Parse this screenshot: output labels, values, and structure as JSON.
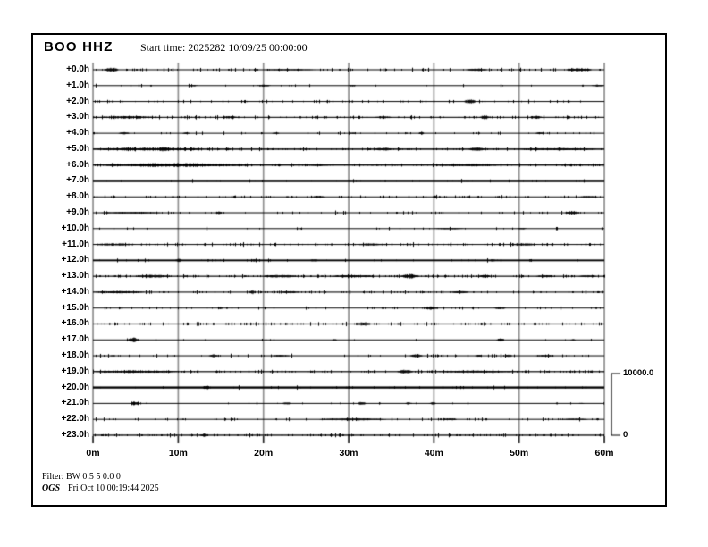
{
  "header": {
    "station": "BOO HHZ",
    "start_time_label": "Start time: 2025282 10/09/25 00:00:00"
  },
  "scale_bar": {
    "max": "10000.0",
    "min": "0"
  },
  "footer": {
    "filter": "Filter: BW 0.5 5 0.0 0",
    "agency": "OGS",
    "generated": "Fri Oct 10 00:19:44 2025"
  },
  "colors": {
    "background": "#ffffff",
    "frame": "#000000",
    "grid": "#909090",
    "grid_tick": "#222222",
    "trace": "#000000"
  },
  "chart_data": {
    "type": "line",
    "subtype": "helicorder",
    "title": "BOO HHZ",
    "x_label_unit": "minutes",
    "x_ticks": [
      "0m",
      "10m",
      "20m",
      "30m",
      "40m",
      "50m",
      "60m"
    ],
    "x_tick_minutes": [
      0,
      10,
      20,
      30,
      40,
      50,
      60
    ],
    "x_range_minutes": [
      0,
      60
    ],
    "row_offset_unit": "hours",
    "amplitude_scale": {
      "max": 10000.0,
      "min": 0
    },
    "legend_position": "right-bracket",
    "grid": "vertical-only",
    "rows": [
      {
        "label": "+0.0h",
        "hour": 0,
        "noise": 0.45,
        "thickness": 1,
        "events": [
          [
            1.3,
            1.6,
            2.4
          ],
          [
            20,
            6,
            0.7
          ],
          [
            43.8,
            2.4,
            1.4
          ],
          [
            55.5,
            3,
            1.8
          ]
        ]
      },
      {
        "label": "+1.0h",
        "hour": 1,
        "noise": 0.12,
        "thickness": 1,
        "events": [
          [
            11.2,
            1,
            1
          ],
          [
            19.2,
            1.6,
            1
          ],
          [
            30,
            0.8,
            0.9
          ],
          [
            58.5,
            1.4,
            1.1
          ]
        ]
      },
      {
        "label": "+2.0h",
        "hour": 2,
        "noise": 0.28,
        "thickness": 1,
        "events": [
          [
            43.5,
            1.4,
            2.4
          ]
        ]
      },
      {
        "label": "+3.0h",
        "hour": 3,
        "noise": 0.5,
        "thickness": 1.1,
        "events": [
          [
            0,
            8,
            1.4
          ],
          [
            15,
            2,
            1.3
          ],
          [
            33,
            2,
            1.3
          ],
          [
            45.3,
            1.2,
            2.2
          ],
          [
            51.2,
            1.6,
            1.6
          ]
        ]
      },
      {
        "label": "+4.0h",
        "hour": 4,
        "noise": 0.25,
        "thickness": 1,
        "events": [
          [
            3,
            1.2,
            1.3
          ],
          [
            10.5,
            0.8,
            1
          ],
          [
            21,
            0.8,
            0.9
          ],
          [
            30,
            0.8,
            0.9
          ],
          [
            38.2,
            0.6,
            1.8
          ],
          [
            51.9,
            1,
            1.1
          ]
        ]
      },
      {
        "label": "+5.0h",
        "hour": 5,
        "noise": 0.6,
        "thickness": 1.5,
        "events": [
          [
            0,
            13,
            1.7
          ],
          [
            7.5,
            1.6,
            2.4
          ],
          [
            33,
            2,
            1.7
          ],
          [
            44,
            2,
            1.9
          ],
          [
            50,
            9,
            1.2
          ]
        ]
      },
      {
        "label": "+6.0h",
        "hour": 6,
        "noise": 0.6,
        "thickness": 1.5,
        "events": [
          [
            0,
            19,
            2
          ],
          [
            25,
            3,
            1.2
          ],
          [
            40,
            8,
            1.5
          ]
        ]
      },
      {
        "label": "+7.0h",
        "hour": 7,
        "noise": 0.18,
        "thickness": 2.5,
        "events": []
      },
      {
        "label": "+8.0h",
        "hour": 8,
        "noise": 0.4,
        "thickness": 1,
        "events": [
          [
            25.6,
            1.6,
            1.2
          ],
          [
            57,
            2.2,
            1.2
          ]
        ]
      },
      {
        "label": "+9.0h",
        "hour": 9,
        "noise": 0.28,
        "thickness": 1,
        "events": [
          [
            1,
            7,
            0.9
          ],
          [
            14.4,
            0.7,
            1.4
          ],
          [
            55.4,
            1.6,
            1.9
          ]
        ]
      },
      {
        "label": "+10.0h",
        "hour": 10,
        "noise": 0.12,
        "thickness": 1,
        "events": [
          [
            40,
            3.5,
            0.8
          ],
          [
            49.8,
            1,
            0.9
          ]
        ]
      },
      {
        "label": "+11.0h",
        "hour": 11,
        "noise": 0.45,
        "thickness": 1,
        "events": [
          [
            0,
            5,
            1.2
          ],
          [
            31,
            3.5,
            1.2
          ],
          [
            48.7,
            3.5,
            1.3
          ]
        ]
      },
      {
        "label": "+12.0h",
        "hour": 12,
        "noise": 0.18,
        "thickness": 1.9,
        "events": [
          [
            9.6,
            0.8,
            1.7
          ],
          [
            18.5,
            0.8,
            1.5
          ],
          [
            25.4,
            0.8,
            1.4
          ],
          [
            46.6,
            0.6,
            1.2
          ]
        ]
      },
      {
        "label": "+13.0h",
        "hour": 13,
        "noise": 0.55,
        "thickness": 1.2,
        "events": [
          [
            5,
            4,
            1.6
          ],
          [
            20,
            4,
            1.4
          ],
          [
            28,
            5,
            1.5
          ],
          [
            36.1,
            2.1,
            2.4
          ],
          [
            45.2,
            1.4,
            2
          ],
          [
            52,
            2,
            1.4
          ],
          [
            57,
            2,
            1.4
          ]
        ]
      },
      {
        "label": "+14.0h",
        "hour": 14,
        "noise": 0.45,
        "thickness": 1.1,
        "events": [
          [
            0,
            6,
            1.2
          ],
          [
            18.3,
            0.6,
            2.4
          ],
          [
            22,
            2.2,
            1.4
          ],
          [
            42,
            2,
            1.3
          ]
        ]
      },
      {
        "label": "+15.0h",
        "hour": 15,
        "noise": 0.3,
        "thickness": 1,
        "events": [
          [
            14.6,
            0.6,
            1.2
          ],
          [
            38.8,
            1.6,
            1.8
          ],
          [
            47,
            1.4,
            1.2
          ]
        ]
      },
      {
        "label": "+16.0h",
        "hour": 16,
        "noise": 0.5,
        "thickness": 1.1,
        "events": [
          [
            31,
            1.6,
            2.1
          ]
        ]
      },
      {
        "label": "+17.0h",
        "hour": 17,
        "noise": 0.08,
        "thickness": 1,
        "events": [
          [
            4,
            1.4,
            2.4
          ],
          [
            28,
            0.6,
            0.9
          ],
          [
            47.3,
            0.9,
            1.5
          ],
          [
            56,
            0.6,
            0.9
          ]
        ]
      },
      {
        "label": "+18.0h",
        "hour": 18,
        "noise": 0.3,
        "thickness": 1,
        "events": [
          [
            2,
            0.6,
            0.9
          ],
          [
            13.6,
            1,
            1.5
          ],
          [
            21,
            2,
            1
          ],
          [
            37.2,
            1.4,
            1.6
          ],
          [
            44.8,
            0.8,
            1
          ],
          [
            48.3,
            0.8,
            1.5
          ],
          [
            52,
            2,
            1
          ]
        ]
      },
      {
        "label": "+19.0h",
        "hour": 19,
        "noise": 0.5,
        "thickness": 1.2,
        "events": [
          [
            0,
            10,
            1.4
          ],
          [
            35.7,
            1.8,
            2.1
          ],
          [
            40,
            10,
            1.1
          ]
        ]
      },
      {
        "label": "+20.0h",
        "hour": 20,
        "noise": 0.15,
        "thickness": 2.3,
        "events": [
          [
            12.8,
            0.9,
            2.2
          ],
          [
            29.5,
            0.6,
            1
          ]
        ]
      },
      {
        "label": "+21.0h",
        "hour": 21,
        "noise": 0.12,
        "thickness": 1,
        "events": [
          [
            4.3,
            1.2,
            2
          ],
          [
            22.2,
            1,
            1.5
          ],
          [
            31,
            1,
            1.7
          ],
          [
            36.6,
            0.8,
            1.5
          ],
          [
            39.4,
            0.8,
            1.5
          ],
          [
            57,
            0.6,
            0.8
          ]
        ]
      },
      {
        "label": "+22.0h",
        "hour": 22,
        "noise": 0.28,
        "thickness": 1,
        "events": [
          [
            26.6,
            7.7,
            1.2
          ],
          [
            41,
            1.6,
            1.3
          ],
          [
            55,
            3,
            0.9
          ]
        ]
      },
      {
        "label": "+23.0h",
        "hour": 23,
        "noise": 0.58,
        "thickness": 1.3,
        "events": [
          [
            12.5,
            0.9,
            1.6
          ]
        ]
      }
    ]
  }
}
